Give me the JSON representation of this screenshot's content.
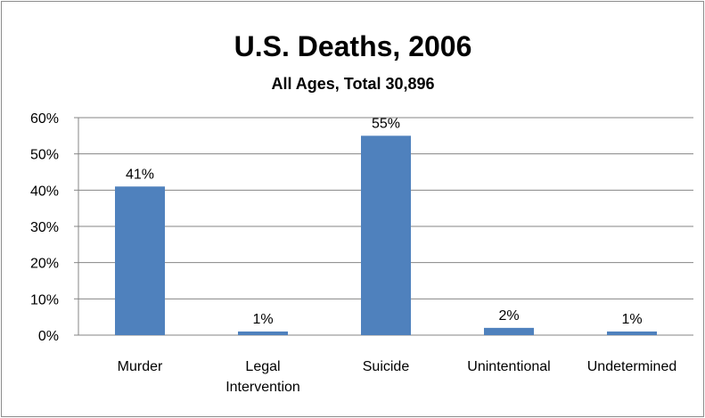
{
  "chart_data": {
    "type": "bar",
    "title": "U.S. Deaths, 2006",
    "subtitle": "All Ages, Total 30,896",
    "categories": [
      [
        "Murder"
      ],
      [
        "Legal",
        "Intervention"
      ],
      [
        "Suicide"
      ],
      [
        "Unintentional"
      ],
      [
        "Undetermined"
      ]
    ],
    "values": [
      41,
      1,
      55,
      2,
      1
    ],
    "data_labels": [
      "41%",
      "1%",
      "55%",
      "2%",
      "1%"
    ],
    "y_ticks": [
      0,
      10,
      20,
      30,
      40,
      50,
      60
    ],
    "y_tick_labels": [
      "0%",
      "10%",
      "20%",
      "30%",
      "40%",
      "50%",
      "60%"
    ],
    "ylim": [
      0,
      60
    ],
    "xlabel": "",
    "ylabel": "",
    "grid": true,
    "legend": "none",
    "colors": {
      "bar": "#4f81bd",
      "grid": "#868686",
      "frame": "#8c8c8c"
    }
  }
}
